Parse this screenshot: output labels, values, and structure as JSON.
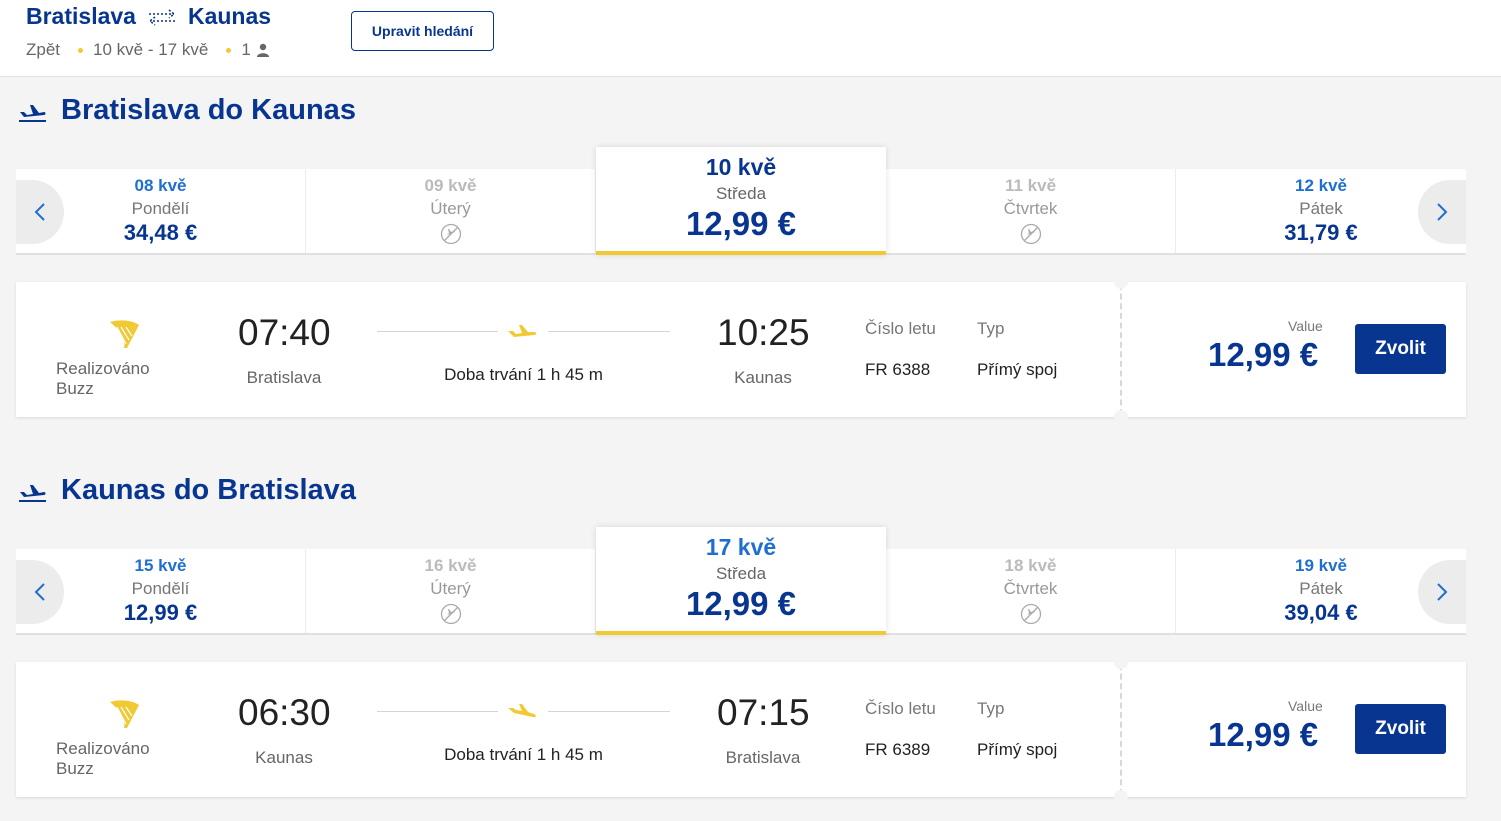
{
  "header": {
    "origin": "Bratislava",
    "destination": "Kaunas",
    "trip_type": "Zpět",
    "dates": "10 kvě - 17 kvě",
    "passengers": "1",
    "edit_label": "Upravit hledání"
  },
  "colors": {
    "brand": "#073590",
    "accent": "#f1c933",
    "link": "#1e6fd0"
  },
  "sections": [
    {
      "title": "Bratislava do Kaunas",
      "dates": [
        {
          "date": "08 kvě",
          "weekday": "Pondělí",
          "price": "34,48 €",
          "available": true
        },
        {
          "date": "09 kvě",
          "weekday": "Úterý",
          "price": "",
          "available": false
        },
        {
          "date": "10 kvě",
          "weekday": "Středa",
          "price": "12,99 €",
          "available": true,
          "selected": true
        },
        {
          "date": "11 kvě",
          "weekday": "Čtvrtek",
          "price": "",
          "available": false
        },
        {
          "date": "12 kvě",
          "weekday": "Pátek",
          "price": "31,79 €",
          "available": true
        }
      ],
      "flight": {
        "operator": "Realizováno Buzz",
        "depart_time": "07:40",
        "depart_city": "Bratislava",
        "duration": "Doba trvání 1 h 45 m",
        "arrive_time": "10:25",
        "arrive_city": "Kaunas",
        "flight_no_label": "Číslo letu",
        "flight_no": "FR 6388",
        "type_label": "Typ",
        "type": "Přímý spoj",
        "fare_type": "Value",
        "price": "12,99 €",
        "select_label": "Zvolit"
      }
    },
    {
      "title": "Kaunas do Bratislava",
      "dates": [
        {
          "date": "15 kvě",
          "weekday": "Pondělí",
          "price": "12,99 €",
          "available": true
        },
        {
          "date": "16 kvě",
          "weekday": "Úterý",
          "price": "",
          "available": false
        },
        {
          "date": "17 kvě",
          "weekday": "Středa",
          "price": "12,99 €",
          "available": true,
          "selected": true
        },
        {
          "date": "18 kvě",
          "weekday": "Čtvrtek",
          "price": "",
          "available": false
        },
        {
          "date": "19 kvě",
          "weekday": "Pátek",
          "price": "39,04 €",
          "available": true
        }
      ],
      "flight": {
        "operator": "Realizováno Buzz",
        "depart_time": "06:30",
        "depart_city": "Kaunas",
        "duration": "Doba trvání 1 h 45 m",
        "arrive_time": "07:15",
        "arrive_city": "Bratislava",
        "flight_no_label": "Číslo letu",
        "flight_no": "FR 6389",
        "type_label": "Typ",
        "type": "Přímý spoj",
        "fare_type": "Value",
        "price": "12,99 €",
        "select_label": "Zvolit"
      }
    }
  ]
}
